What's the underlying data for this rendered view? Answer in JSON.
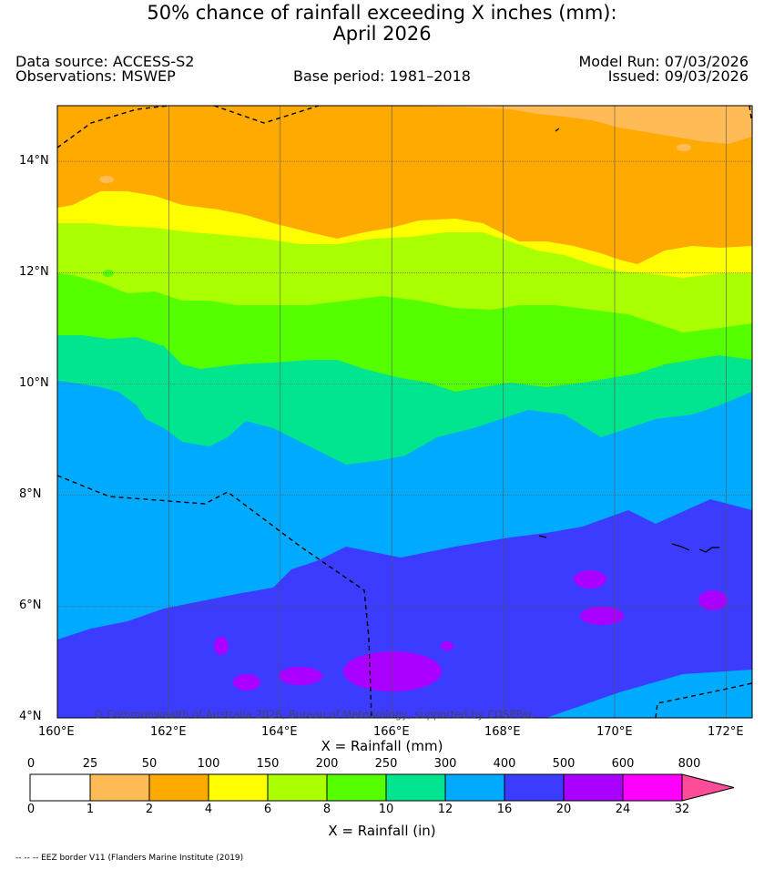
{
  "title": {
    "line1": "50% chance of rainfall exceeding X inches (mm):",
    "line2": "April 2026"
  },
  "header": {
    "data_source": "Data source: ACCESS-S2",
    "observations": "Observations: MSWEP",
    "base_period": "Base period: 1981–2018",
    "model_run": "Model Run: 07/03/2026",
    "issued": "Issued: 09/03/2026"
  },
  "map": {
    "copyright": "© Commonwealth of Australia 2026, Bureau of Meteorology, supported by COSPPac",
    "lon_labels": [
      "160°E",
      "162°E",
      "164°E",
      "166°E",
      "168°E",
      "170°E",
      "172°E"
    ],
    "lat_labels": [
      "14°N",
      "12°N",
      "10°N",
      "8°N",
      "6°N",
      "4°N"
    ],
    "lon_range": [
      160,
      172.5
    ],
    "lat_range": [
      4,
      15
    ]
  },
  "colorbar": {
    "mm_title": "X = Rainfall (mm)",
    "in_title": "X = Rainfall (in)",
    "mm_ticks": [
      "0",
      "25",
      "50",
      "100",
      "150",
      "200",
      "250",
      "300",
      "400",
      "500",
      "600",
      "800"
    ],
    "in_ticks": [
      "0",
      "1",
      "2",
      "4",
      "6",
      "8",
      "10",
      "12",
      "16",
      "20",
      "24",
      "32"
    ],
    "colors": [
      "#ffffff",
      "#ffbb55",
      "#ffaa00",
      "#ffff00",
      "#aaff00",
      "#55ff00",
      "#00e58e",
      "#00aaff",
      "#3c3cff",
      "#aa00ff",
      "#ff00ff",
      "#ff4c99"
    ]
  },
  "footnote": "-- -- -- EEZ border V11 (Flanders Marine Institute (2019)"
}
